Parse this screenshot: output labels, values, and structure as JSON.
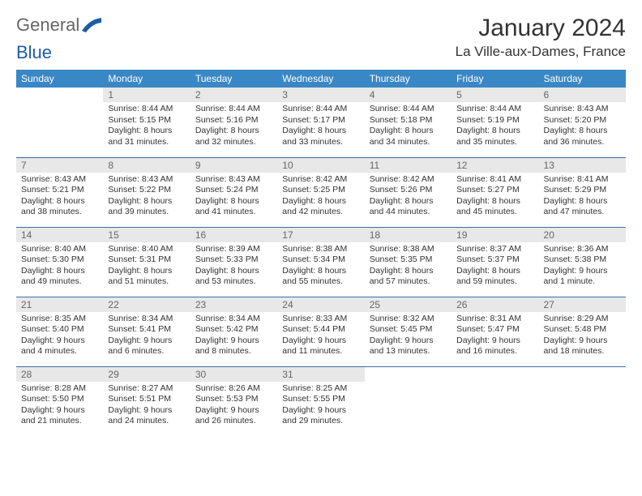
{
  "logo": {
    "text_a": "General",
    "text_b": "Blue",
    "swoosh_color": "#1b5da8"
  },
  "header": {
    "month_title": "January 2024",
    "location": "La Ville-aux-Dames, France"
  },
  "colors": {
    "header_bg": "#3a87c6",
    "header_text": "#ffffff",
    "daynum_bg": "#e8e8e8",
    "daynum_text": "#666666",
    "cell_border": "#3a6ea5",
    "body_text": "#333333"
  },
  "weekdays": [
    "Sunday",
    "Monday",
    "Tuesday",
    "Wednesday",
    "Thursday",
    "Friday",
    "Saturday"
  ],
  "start_offset": 1,
  "days": [
    {
      "n": 1,
      "sunrise": "8:44 AM",
      "sunset": "5:15 PM",
      "daylight": "8 hours and 31 minutes."
    },
    {
      "n": 2,
      "sunrise": "8:44 AM",
      "sunset": "5:16 PM",
      "daylight": "8 hours and 32 minutes."
    },
    {
      "n": 3,
      "sunrise": "8:44 AM",
      "sunset": "5:17 PM",
      "daylight": "8 hours and 33 minutes."
    },
    {
      "n": 4,
      "sunrise": "8:44 AM",
      "sunset": "5:18 PM",
      "daylight": "8 hours and 34 minutes."
    },
    {
      "n": 5,
      "sunrise": "8:44 AM",
      "sunset": "5:19 PM",
      "daylight": "8 hours and 35 minutes."
    },
    {
      "n": 6,
      "sunrise": "8:43 AM",
      "sunset": "5:20 PM",
      "daylight": "8 hours and 36 minutes."
    },
    {
      "n": 7,
      "sunrise": "8:43 AM",
      "sunset": "5:21 PM",
      "daylight": "8 hours and 38 minutes."
    },
    {
      "n": 8,
      "sunrise": "8:43 AM",
      "sunset": "5:22 PM",
      "daylight": "8 hours and 39 minutes."
    },
    {
      "n": 9,
      "sunrise": "8:43 AM",
      "sunset": "5:24 PM",
      "daylight": "8 hours and 41 minutes."
    },
    {
      "n": 10,
      "sunrise": "8:42 AM",
      "sunset": "5:25 PM",
      "daylight": "8 hours and 42 minutes."
    },
    {
      "n": 11,
      "sunrise": "8:42 AM",
      "sunset": "5:26 PM",
      "daylight": "8 hours and 44 minutes."
    },
    {
      "n": 12,
      "sunrise": "8:41 AM",
      "sunset": "5:27 PM",
      "daylight": "8 hours and 45 minutes."
    },
    {
      "n": 13,
      "sunrise": "8:41 AM",
      "sunset": "5:29 PM",
      "daylight": "8 hours and 47 minutes."
    },
    {
      "n": 14,
      "sunrise": "8:40 AM",
      "sunset": "5:30 PM",
      "daylight": "8 hours and 49 minutes."
    },
    {
      "n": 15,
      "sunrise": "8:40 AM",
      "sunset": "5:31 PM",
      "daylight": "8 hours and 51 minutes."
    },
    {
      "n": 16,
      "sunrise": "8:39 AM",
      "sunset": "5:33 PM",
      "daylight": "8 hours and 53 minutes."
    },
    {
      "n": 17,
      "sunrise": "8:38 AM",
      "sunset": "5:34 PM",
      "daylight": "8 hours and 55 minutes."
    },
    {
      "n": 18,
      "sunrise": "8:38 AM",
      "sunset": "5:35 PM",
      "daylight": "8 hours and 57 minutes."
    },
    {
      "n": 19,
      "sunrise": "8:37 AM",
      "sunset": "5:37 PM",
      "daylight": "8 hours and 59 minutes."
    },
    {
      "n": 20,
      "sunrise": "8:36 AM",
      "sunset": "5:38 PM",
      "daylight": "9 hours and 1 minute."
    },
    {
      "n": 21,
      "sunrise": "8:35 AM",
      "sunset": "5:40 PM",
      "daylight": "9 hours and 4 minutes."
    },
    {
      "n": 22,
      "sunrise": "8:34 AM",
      "sunset": "5:41 PM",
      "daylight": "9 hours and 6 minutes."
    },
    {
      "n": 23,
      "sunrise": "8:34 AM",
      "sunset": "5:42 PM",
      "daylight": "9 hours and 8 minutes."
    },
    {
      "n": 24,
      "sunrise": "8:33 AM",
      "sunset": "5:44 PM",
      "daylight": "9 hours and 11 minutes."
    },
    {
      "n": 25,
      "sunrise": "8:32 AM",
      "sunset": "5:45 PM",
      "daylight": "9 hours and 13 minutes."
    },
    {
      "n": 26,
      "sunrise": "8:31 AM",
      "sunset": "5:47 PM",
      "daylight": "9 hours and 16 minutes."
    },
    {
      "n": 27,
      "sunrise": "8:29 AM",
      "sunset": "5:48 PM",
      "daylight": "9 hours and 18 minutes."
    },
    {
      "n": 28,
      "sunrise": "8:28 AM",
      "sunset": "5:50 PM",
      "daylight": "9 hours and 21 minutes."
    },
    {
      "n": 29,
      "sunrise": "8:27 AM",
      "sunset": "5:51 PM",
      "daylight": "9 hours and 24 minutes."
    },
    {
      "n": 30,
      "sunrise": "8:26 AM",
      "sunset": "5:53 PM",
      "daylight": "9 hours and 26 minutes."
    },
    {
      "n": 31,
      "sunrise": "8:25 AM",
      "sunset": "5:55 PM",
      "daylight": "9 hours and 29 minutes."
    }
  ],
  "labels": {
    "sunrise": "Sunrise:",
    "sunset": "Sunset:",
    "daylight": "Daylight:"
  }
}
